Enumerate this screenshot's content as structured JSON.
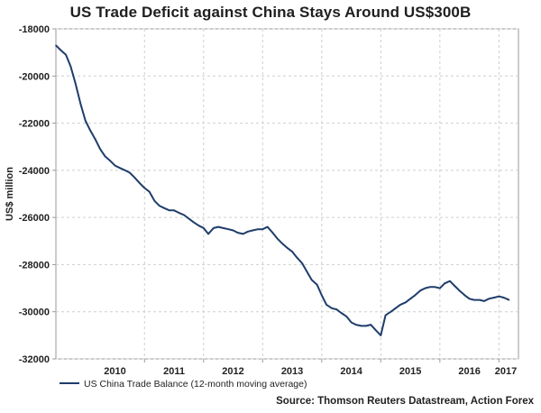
{
  "chart_data": {
    "type": "line",
    "title": "US Trade Deficit against China Stays Around US$300B",
    "xlabel": "",
    "ylabel": "US$ million",
    "ylim": [
      -32000,
      -18000
    ],
    "yticks": [
      -18000,
      -20000,
      -22000,
      -24000,
      -26000,
      -28000,
      -30000,
      -32000
    ],
    "ytick_labels": [
      "-18000",
      "-20000",
      "-22000",
      "-24000",
      "-26000",
      "-28000",
      "-30000",
      "-32000"
    ],
    "xlim": [
      2009.5,
      2017.33
    ],
    "xtick_labels": [
      "2010",
      "2011",
      "2012",
      "2013",
      "2014",
      "2015",
      "2016",
      "2017"
    ],
    "legend": "bottom-left",
    "source": "Source: Thomson Reuters Datastream, Action Forex",
    "color": "#1f3d6b",
    "series": [
      {
        "name": "US China Trade Balance (12-month moving average)",
        "x": [
          2009.5,
          2009.58,
          2009.67,
          2009.75,
          2009.83,
          2009.92,
          2010.0,
          2010.08,
          2010.17,
          2010.25,
          2010.33,
          2010.42,
          2010.5,
          2010.58,
          2010.67,
          2010.75,
          2010.83,
          2010.92,
          2011.0,
          2011.08,
          2011.17,
          2011.25,
          2011.33,
          2011.42,
          2011.5,
          2011.58,
          2011.67,
          2011.75,
          2011.83,
          2011.92,
          2012.0,
          2012.08,
          2012.17,
          2012.25,
          2012.33,
          2012.42,
          2012.5,
          2012.58,
          2012.67,
          2012.75,
          2012.83,
          2012.92,
          2013.0,
          2013.08,
          2013.17,
          2013.25,
          2013.33,
          2013.42,
          2013.5,
          2013.58,
          2013.67,
          2013.75,
          2013.83,
          2013.92,
          2014.0,
          2014.08,
          2014.17,
          2014.25,
          2014.33,
          2014.42,
          2014.5,
          2014.58,
          2014.67,
          2014.75,
          2014.83,
          2014.92,
          2015.0,
          2015.08,
          2015.17,
          2015.25,
          2015.33,
          2015.42,
          2015.5,
          2015.58,
          2015.67,
          2015.75,
          2015.83,
          2015.92,
          2016.0,
          2016.08,
          2016.17,
          2016.25,
          2016.33,
          2016.42,
          2016.5,
          2016.58,
          2016.67,
          2016.75,
          2016.83,
          2016.92,
          2017.0,
          2017.08,
          2017.17
        ],
        "values": [
          -18700,
          -18900,
          -19100,
          -19600,
          -20300,
          -21200,
          -21900,
          -22300,
          -22700,
          -23100,
          -23400,
          -23600,
          -23800,
          -23900,
          -24000,
          -24100,
          -24300,
          -24550,
          -24750,
          -24900,
          -25300,
          -25500,
          -25600,
          -25700,
          -25700,
          -25800,
          -25900,
          -26050,
          -26200,
          -26350,
          -26450,
          -26700,
          -26450,
          -26400,
          -26450,
          -26500,
          -26550,
          -26650,
          -26700,
          -26600,
          -26550,
          -26500,
          -26500,
          -26400,
          -26650,
          -26900,
          -27100,
          -27300,
          -27450,
          -27700,
          -27950,
          -28300,
          -28650,
          -28850,
          -29300,
          -29700,
          -29850,
          -29900,
          -30050,
          -30200,
          -30450,
          -30550,
          -30600,
          -30600,
          -30550,
          -30800,
          -31000,
          -30150,
          -30000,
          -29850,
          -29700,
          -29600,
          -29450,
          -29300,
          -29100,
          -29000,
          -28950,
          -28950,
          -29000,
          -28800,
          -28700,
          -28900,
          -29100,
          -29300,
          -29450,
          -29500,
          -29500,
          -29550,
          -29450,
          -29400,
          -29350,
          -29400,
          -29500
        ]
      }
    ]
  }
}
